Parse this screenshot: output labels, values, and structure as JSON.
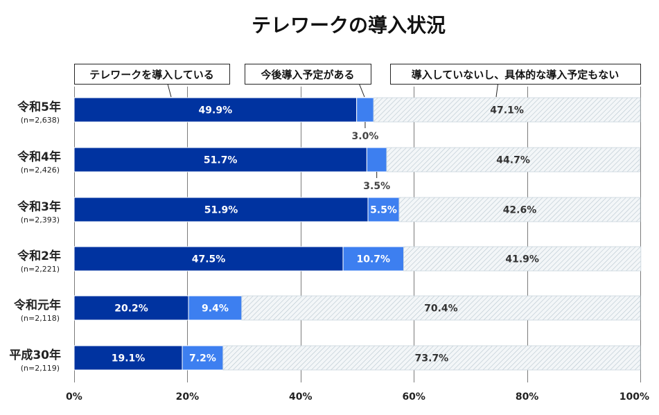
{
  "chart_data": {
    "type": "bar",
    "stacked": true,
    "orientation": "horizontal",
    "title": "テレワークの導入状況",
    "categories": [
      "令和5年",
      "令和4年",
      "令和3年",
      "令和2年",
      "令和元年",
      "平成30年"
    ],
    "sample_sizes": [
      "(n=2,638)",
      "(n=2,426)",
      "(n=2,393)",
      "(n=2,221)",
      "(n=2,118)",
      "(n=2,119)"
    ],
    "series": [
      {
        "name": "テレワークを導入している",
        "color": "#0033a0",
        "values": [
          49.9,
          51.7,
          51.9,
          47.5,
          20.2,
          19.1
        ],
        "labels": [
          "49.9%",
          "51.7%",
          "51.9%",
          "47.5%",
          "20.2%",
          "19.1%"
        ]
      },
      {
        "name": "今後導入予定がある",
        "color": "#3d7ff0",
        "values": [
          3.0,
          3.5,
          5.5,
          10.7,
          9.4,
          7.2
        ],
        "labels": [
          "3.0%",
          "3.5%",
          "5.5%",
          "10.7%",
          "9.4%",
          "7.2%"
        ]
      },
      {
        "name": "導入していないし、具体的な導入予定もない",
        "color": "#e8eef2",
        "values": [
          47.1,
          44.7,
          42.6,
          41.9,
          70.4,
          73.7
        ],
        "labels": [
          "47.1%",
          "44.7%",
          "42.6%",
          "41.9%",
          "70.4%",
          "73.7%"
        ]
      }
    ],
    "xlim": [
      0,
      100
    ],
    "xticks": [
      "0%",
      "20%",
      "40%",
      "60%",
      "80%",
      "100%"
    ],
    "grid": true
  }
}
